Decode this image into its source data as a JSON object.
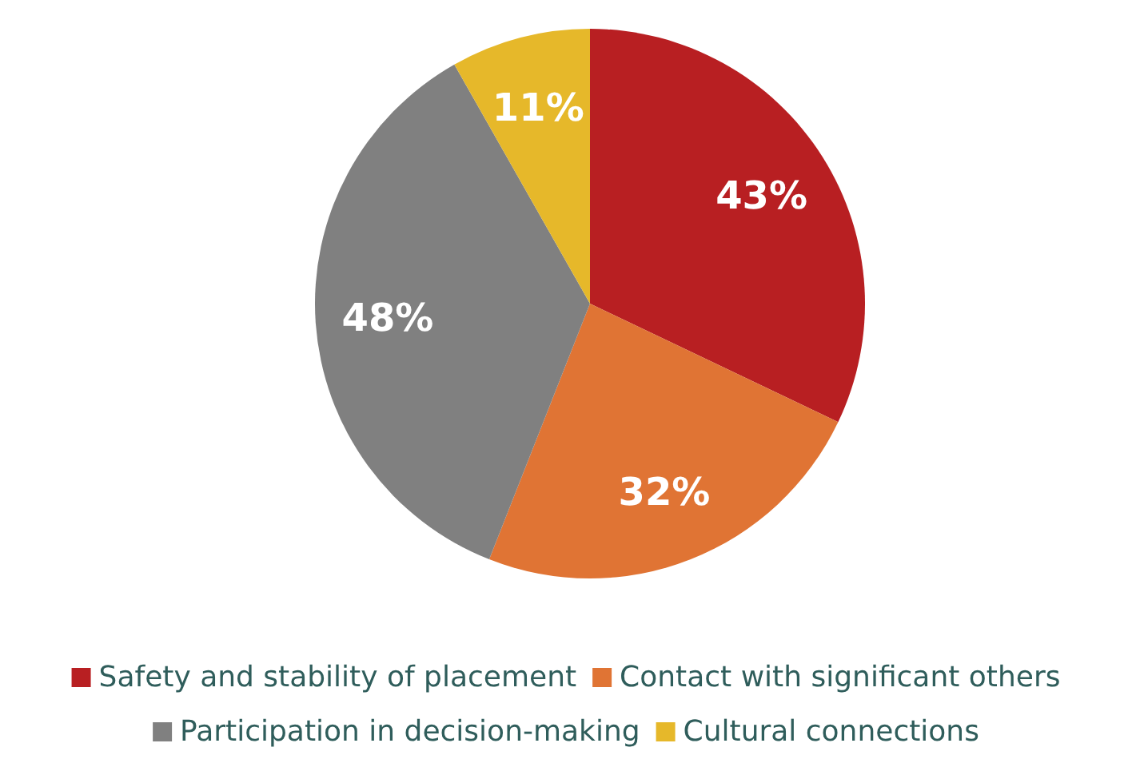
{
  "chart_data": {
    "type": "pie",
    "categories": [
      "Safety and stability of placement",
      "Contact with significant others",
      "Participation in decision-making",
      "Cultural connections"
    ],
    "values": [
      43,
      32,
      48,
      11
    ],
    "colors": [
      "#b81f22",
      "#e07434",
      "#808080",
      "#e6b82a"
    ],
    "value_labels": [
      "43%",
      "32%",
      "48%",
      "11%"
    ],
    "legend": "bottom"
  }
}
